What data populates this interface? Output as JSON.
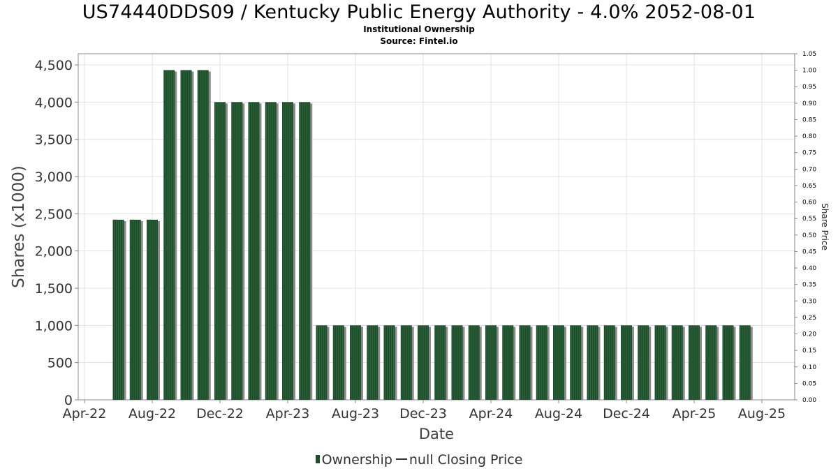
{
  "header": {
    "title": "US74440DDS09 / Kentucky Public Energy Authority - 4.0% 2052-08-01",
    "subtitle1": "Institutional Ownership",
    "subtitle2": "Source: Fintel.io"
  },
  "legend": {
    "ownership_label": "Ownership",
    "price_label": "null Closing Price"
  },
  "colors": {
    "bar_fill": "#1e4d2b",
    "bar_stripe": "#2f6b3c",
    "bar_shadow": "#8c8c8c",
    "grid": "#e0e0e0",
    "axis": "#888888"
  },
  "chart_data": {
    "type": "bar",
    "xlabel": "Date",
    "ylabel": "Shares (x1000)",
    "y2label": "Share Price",
    "ylim": [
      0,
      4650
    ],
    "y2lim": [
      0,
      1.05
    ],
    "yticks": [
      "0",
      "500",
      "1,000",
      "1,500",
      "2,000",
      "2,500",
      "3,000",
      "3,500",
      "4,000",
      "4,500"
    ],
    "y2ticks": [
      "0.00",
      "0.05",
      "0.10",
      "0.15",
      "0.20",
      "0.25",
      "0.30",
      "0.35",
      "0.40",
      "0.45",
      "0.50",
      "0.55",
      "0.60",
      "0.65",
      "0.70",
      "0.75",
      "0.80",
      "0.85",
      "0.90",
      "0.95",
      "1.00",
      "1.05"
    ],
    "xticks": [
      "Apr-22",
      "Aug-22",
      "Dec-22",
      "Apr-23",
      "Aug-23",
      "Dec-23",
      "Apr-24",
      "Aug-24",
      "Dec-24",
      "Apr-25",
      "Aug-25"
    ],
    "grid": true,
    "legend_position": "bottom",
    "series": [
      {
        "name": "Ownership",
        "values": [
          2420,
          2420,
          2420,
          4430,
          4430,
          4430,
          4000,
          4000,
          4000,
          4000,
          4000,
          4000,
          1000,
          1000,
          1000,
          1000,
          1000,
          1000,
          1000,
          1000,
          1000,
          1000,
          1000,
          1000,
          1000,
          1000,
          1000,
          1000,
          1000,
          1000,
          1000,
          1000,
          1000,
          1000,
          1000,
          1000,
          1000,
          1000
        ]
      }
    ]
  }
}
